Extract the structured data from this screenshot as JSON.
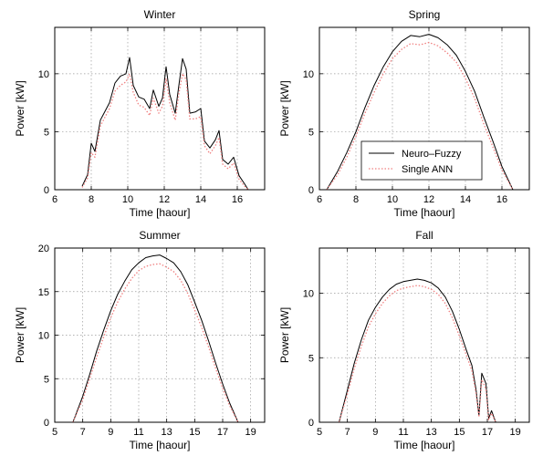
{
  "chart_data": [
    {
      "type": "line",
      "title": "Winter",
      "xlabel": "Time [haour]",
      "ylabel": "Power [kW]",
      "xlim": [
        6,
        17.5
      ],
      "ylim": [
        0,
        14
      ],
      "xticks": [
        6,
        8,
        10,
        12,
        14,
        16
      ],
      "yticks": [
        0,
        5,
        10
      ],
      "grid": true,
      "series": [
        {
          "name": "Neuro-Fuzzy",
          "color": "#000000",
          "style": "solid",
          "x": [
            7.5,
            7.8,
            8.0,
            8.2,
            8.5,
            9.0,
            9.3,
            9.6,
            9.9,
            10.1,
            10.3,
            10.6,
            10.9,
            11.2,
            11.4,
            11.7,
            11.9,
            12.1,
            12.3,
            12.6,
            12.8,
            13.0,
            13.2,
            13.4,
            13.7,
            14.0,
            14.2,
            14.5,
            14.8,
            15.0,
            15.2,
            15.5,
            15.8,
            16.1,
            16.4,
            16.6
          ],
          "y": [
            0.3,
            1.3,
            4.0,
            3.3,
            6.0,
            7.5,
            9.2,
            9.8,
            10.0,
            11.4,
            9.0,
            8.0,
            7.8,
            7.0,
            8.6,
            7.2,
            7.9,
            10.6,
            8.2,
            6.6,
            9.0,
            11.3,
            10.4,
            6.6,
            6.7,
            7.0,
            4.2,
            3.6,
            4.3,
            5.1,
            2.6,
            2.2,
            2.8,
            1.2,
            0.5,
            0.0
          ]
        },
        {
          "name": "Single ANN",
          "color": "#f08080",
          "style": "dotted",
          "x": [
            7.5,
            7.8,
            8.0,
            8.2,
            8.5,
            9.0,
            9.3,
            9.6,
            9.9,
            10.1,
            10.3,
            10.6,
            10.9,
            11.2,
            11.4,
            11.7,
            11.9,
            12.1,
            12.3,
            12.6,
            12.8,
            13.0,
            13.2,
            13.4,
            13.7,
            14.0,
            14.2,
            14.5,
            14.8,
            15.0,
            15.2,
            15.5,
            15.8,
            16.1,
            16.4,
            16.6
          ],
          "y": [
            0.2,
            1.0,
            3.2,
            2.8,
            5.5,
            7.0,
            8.5,
            9.0,
            9.3,
            10.0,
            8.4,
            7.3,
            7.1,
            6.4,
            7.9,
            6.6,
            7.2,
            9.6,
            7.5,
            6.0,
            8.3,
            10.0,
            9.5,
            6.1,
            6.1,
            6.3,
            3.8,
            3.1,
            3.8,
            4.5,
            2.2,
            1.8,
            2.3,
            0.9,
            0.3,
            0.0
          ]
        }
      ]
    },
    {
      "type": "line",
      "title": "Spring",
      "xlabel": "Time [haour]",
      "ylabel": "Power [kW]",
      "xlim": [
        6,
        17.5
      ],
      "ylim": [
        0,
        14
      ],
      "xticks": [
        6,
        8,
        10,
        12,
        14,
        16
      ],
      "yticks": [
        0,
        5,
        10
      ],
      "grid": true,
      "legend": {
        "placement": "center-right",
        "entries": [
          "Neuro–Fuzzy",
          "Single ANN"
        ]
      },
      "series": [
        {
          "name": "Neuro-Fuzzy",
          "color": "#000000",
          "style": "solid",
          "x": [
            6.4,
            7.0,
            7.5,
            8.0,
            8.5,
            9.0,
            9.5,
            10.0,
            10.5,
            11.0,
            11.5,
            12.0,
            12.5,
            13.0,
            13.5,
            14.0,
            14.5,
            15.0,
            15.5,
            16.0,
            16.6
          ],
          "y": [
            0.0,
            1.6,
            3.2,
            5.0,
            7.1,
            9.0,
            10.6,
            11.9,
            12.8,
            13.3,
            13.2,
            13.4,
            13.1,
            12.5,
            11.6,
            10.2,
            8.5,
            6.3,
            4.2,
            2.0,
            0.0
          ]
        },
        {
          "name": "Single ANN",
          "color": "#f08080",
          "style": "dotted",
          "x": [
            6.4,
            7.0,
            7.5,
            8.0,
            8.5,
            9.0,
            9.5,
            10.0,
            10.5,
            11.0,
            11.5,
            12.0,
            12.5,
            13.0,
            13.5,
            14.0,
            14.5,
            15.0,
            15.5,
            16.0,
            16.6
          ],
          "y": [
            0.0,
            1.3,
            2.8,
            4.6,
            6.6,
            8.4,
            10.0,
            11.3,
            12.1,
            12.6,
            12.5,
            12.7,
            12.4,
            11.8,
            11.0,
            9.6,
            7.9,
            5.7,
            3.7,
            1.7,
            0.0
          ]
        }
      ]
    },
    {
      "type": "line",
      "title": "Summer",
      "xlabel": "Time [haour]",
      "ylabel": "Power [kW]",
      "xlim": [
        5,
        20
      ],
      "ylim": [
        0,
        20
      ],
      "xticks": [
        5,
        7,
        9,
        11,
        13,
        15,
        17,
        19
      ],
      "yticks": [
        0,
        5,
        10,
        15,
        20
      ],
      "grid": true,
      "series": [
        {
          "name": "Neuro-Fuzzy",
          "color": "#000000",
          "style": "solid",
          "x": [
            6.3,
            7.0,
            7.5,
            8.0,
            8.5,
            9.0,
            9.5,
            10.0,
            10.5,
            11.0,
            11.5,
            12.0,
            12.5,
            13.0,
            13.5,
            14.0,
            14.5,
            15.0,
            15.5,
            16.0,
            16.5,
            17.0,
            17.5,
            18.1
          ],
          "y": [
            0.0,
            3.0,
            5.5,
            8.2,
            10.6,
            12.8,
            14.7,
            16.2,
            17.5,
            18.3,
            18.9,
            19.1,
            19.2,
            18.8,
            18.3,
            17.3,
            15.8,
            13.8,
            11.7,
            9.3,
            6.8,
            4.4,
            2.2,
            0.0
          ]
        },
        {
          "name": "Single ANN",
          "color": "#f08080",
          "style": "dotted",
          "x": [
            6.3,
            7.0,
            7.5,
            8.0,
            8.5,
            9.0,
            9.5,
            10.0,
            10.5,
            11.0,
            11.5,
            12.0,
            12.5,
            13.0,
            13.5,
            14.0,
            14.5,
            15.0,
            15.5,
            16.0,
            16.5,
            17.0,
            17.5,
            18.1
          ],
          "y": [
            0.0,
            2.6,
            5.0,
            7.5,
            9.8,
            12.0,
            13.8,
            15.3,
            16.5,
            17.4,
            17.9,
            18.1,
            18.2,
            17.8,
            17.3,
            16.3,
            14.8,
            12.9,
            10.9,
            8.6,
            6.2,
            3.9,
            1.9,
            0.0
          ]
        }
      ]
    },
    {
      "type": "line",
      "title": "Fall",
      "xlabel": "Time [haour]",
      "ylabel": "Power [kW]",
      "xlim": [
        5,
        20
      ],
      "ylim": [
        0,
        13.5
      ],
      "xticks": [
        5,
        7,
        9,
        11,
        13,
        15,
        17,
        19
      ],
      "yticks": [
        0,
        5,
        10
      ],
      "grid": true,
      "series": [
        {
          "name": "Neuro-Fuzzy",
          "color": "#000000",
          "style": "solid",
          "x": [
            6.4,
            7.0,
            7.5,
            8.0,
            8.5,
            9.0,
            9.5,
            10.0,
            10.5,
            11.0,
            11.5,
            12.0,
            12.5,
            13.0,
            13.5,
            14.0,
            14.5,
            15.0,
            15.5,
            15.9,
            16.2,
            16.4,
            16.6,
            16.9,
            17.1,
            17.3,
            17.6
          ],
          "y": [
            0.0,
            2.5,
            4.6,
            6.4,
            7.9,
            8.9,
            9.7,
            10.3,
            10.7,
            10.9,
            11.0,
            11.1,
            11.0,
            10.8,
            10.4,
            9.7,
            8.6,
            7.2,
            5.6,
            4.4,
            2.5,
            0.5,
            3.8,
            3.0,
            0.3,
            0.9,
            0.0
          ]
        },
        {
          "name": "Single ANN",
          "color": "#f08080",
          "style": "dotted",
          "x": [
            6.4,
            7.0,
            7.5,
            8.0,
            8.5,
            9.0,
            9.5,
            10.0,
            10.5,
            11.0,
            11.5,
            12.0,
            12.5,
            13.0,
            13.5,
            14.0,
            14.5,
            15.0,
            15.5,
            15.9,
            16.2,
            16.4,
            16.6,
            16.9,
            17.1,
            17.3,
            17.6
          ],
          "y": [
            0.0,
            2.2,
            4.2,
            5.9,
            7.4,
            8.4,
            9.2,
            9.8,
            10.2,
            10.4,
            10.5,
            10.6,
            10.5,
            10.3,
            9.9,
            9.2,
            8.1,
            6.7,
            5.2,
            4.0,
            2.2,
            0.4,
            3.3,
            2.6,
            0.2,
            0.7,
            0.0
          ]
        }
      ]
    }
  ]
}
